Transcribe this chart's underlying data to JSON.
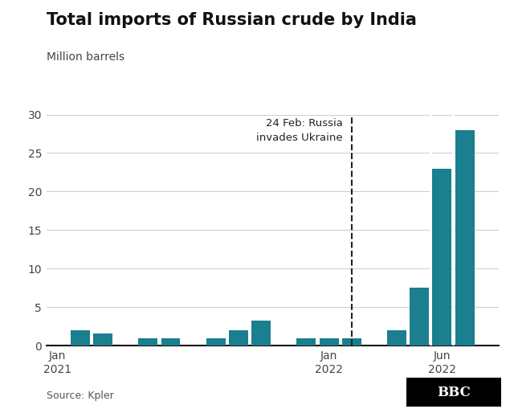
{
  "title": "Total imports of Russian crude by India",
  "subtitle": "Million barrels",
  "bar_color": "#1a7f8e",
  "background_color": "#ffffff",
  "source_text": "Source: Kpler",
  "annotation_text": "24 Feb: Russia\ninvades Ukraine",
  "ylim": [
    0,
    30
  ],
  "yticks": [
    0,
    5,
    10,
    15,
    20,
    25,
    30
  ],
  "values": [
    0,
    2.0,
    1.6,
    0,
    1.0,
    1.0,
    0,
    1.0,
    2.0,
    3.2,
    0,
    1.0,
    1.0,
    1.0,
    0,
    2.0,
    7.5,
    23.0,
    28.0,
    0
  ],
  "invasion_x": 13.5,
  "xtick_positions": [
    0.5,
    12.5,
    17.5
  ],
  "xtick_labels": [
    "Jan\n2021",
    "Jan\n2022",
    "Jun\n2022"
  ]
}
